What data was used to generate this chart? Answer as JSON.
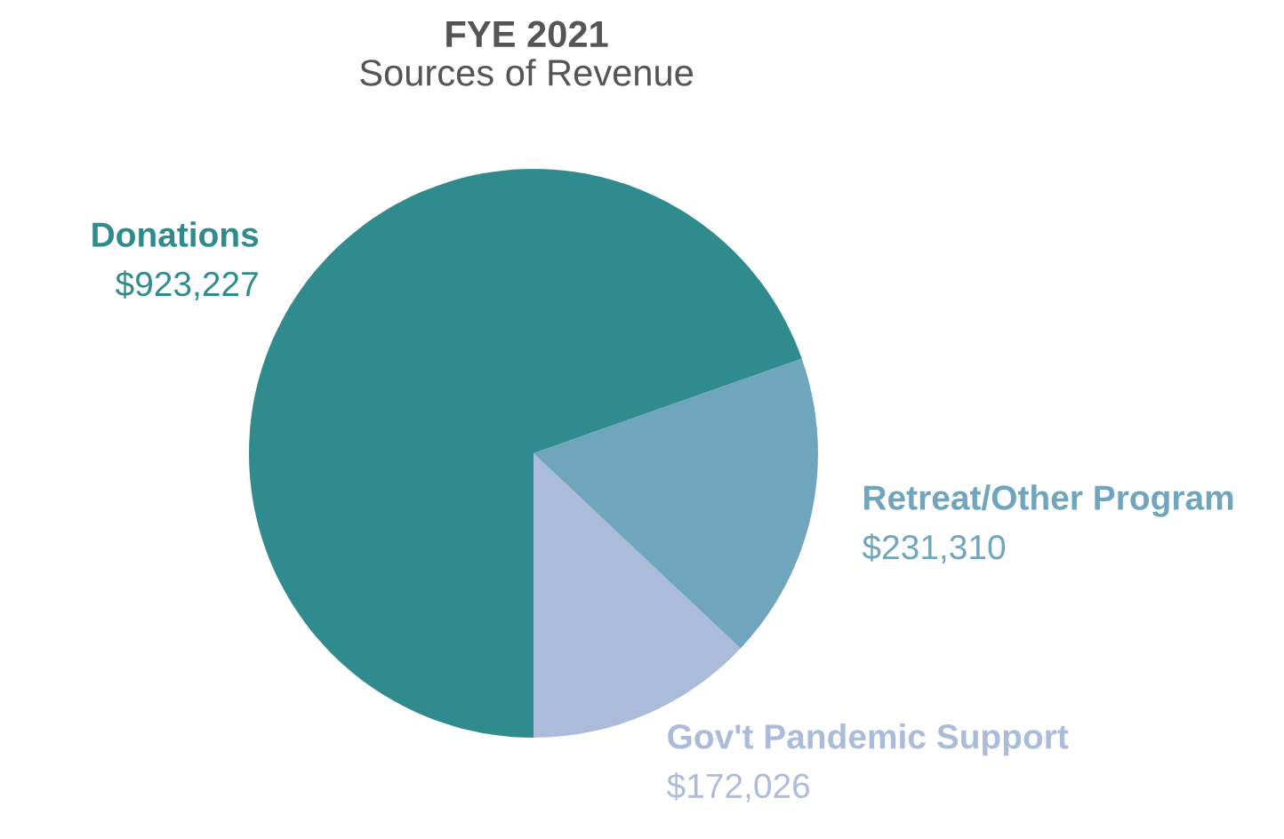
{
  "chart_data": {
    "type": "pie",
    "title": "FYE 2021",
    "subtitle": "Sources of Revenue",
    "categories": [
      "Gov't Pandemic Support",
      "Retreat/Other Program",
      "Donations"
    ],
    "values": [
      172026,
      231310,
      923227
    ],
    "colors": [
      "#abbcdb",
      "#6fa5bd",
      "#308b8f"
    ],
    "value_labels": [
      "$172,026",
      "$231,310",
      "$923,227"
    ],
    "legend": false
  }
}
